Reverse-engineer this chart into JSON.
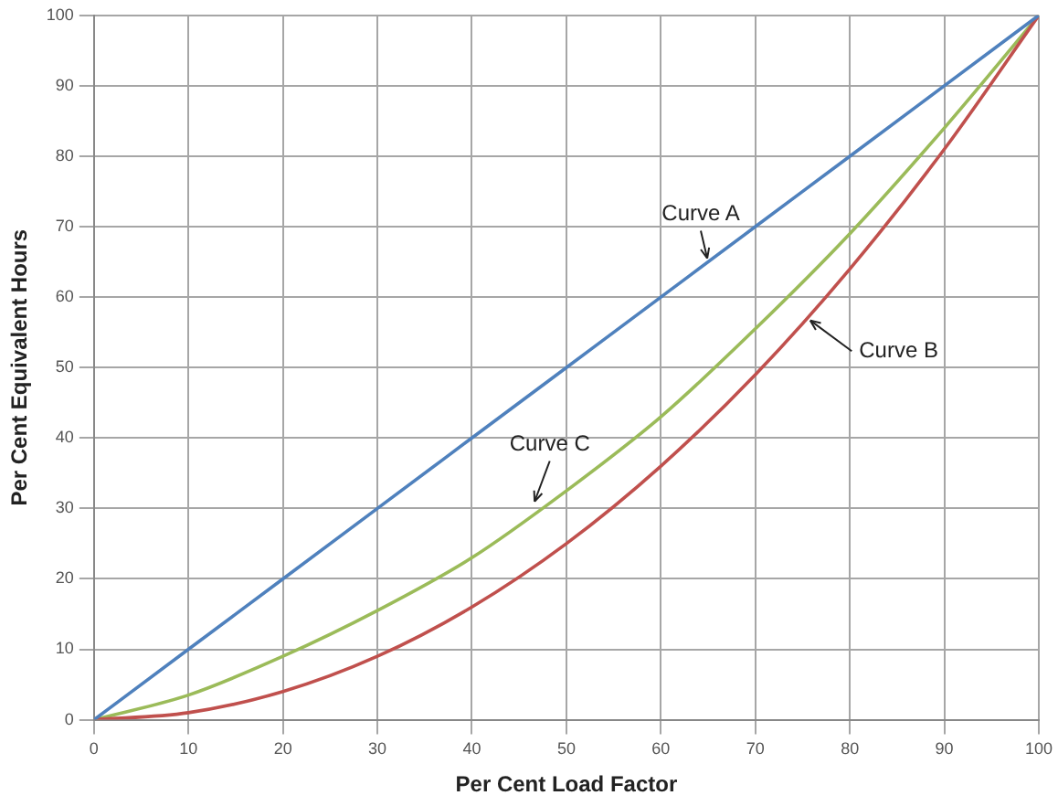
{
  "chart_data": {
    "type": "line",
    "xlabel": "Per Cent Load Factor",
    "ylabel": "Per Cent Equivalent Hours",
    "x": [
      0,
      10,
      20,
      30,
      40,
      50,
      60,
      70,
      80,
      90,
      100
    ],
    "series": [
      {
        "color": "#4f81bd",
        "values": [
          0,
          10,
          20,
          30,
          40,
          50,
          60,
          70,
          80,
          90,
          100
        ]
      },
      {
        "color": "#c0504d",
        "values": [
          0,
          1,
          4,
          9,
          16,
          25,
          36,
          49,
          64,
          81,
          100
        ]
      },
      {
        "color": "#9bbb59",
        "values": [
          0,
          3.5,
          9,
          15.5,
          23,
          32.5,
          43,
          55.5,
          69,
          84,
          100
        ]
      }
    ],
    "xlim": [
      0,
      100
    ],
    "xticks": [
      0,
      10,
      20,
      30,
      40,
      50,
      60,
      70,
      80,
      90,
      100
    ],
    "ylim": [
      0,
      100
    ],
    "yticks": [
      0,
      10,
      20,
      30,
      40,
      50,
      60,
      70,
      80,
      90,
      100
    ],
    "grid": true,
    "legend": false,
    "marker": "none",
    "line_style": "solid",
    "annotations": [
      {
        "text": "Curve A",
        "x": 65,
        "y": 65
      },
      {
        "text": "Curve B",
        "x": 75.5,
        "y": 57
      },
      {
        "text": "Curve C",
        "x": 46.5,
        "y": 30.5
      }
    ]
  }
}
